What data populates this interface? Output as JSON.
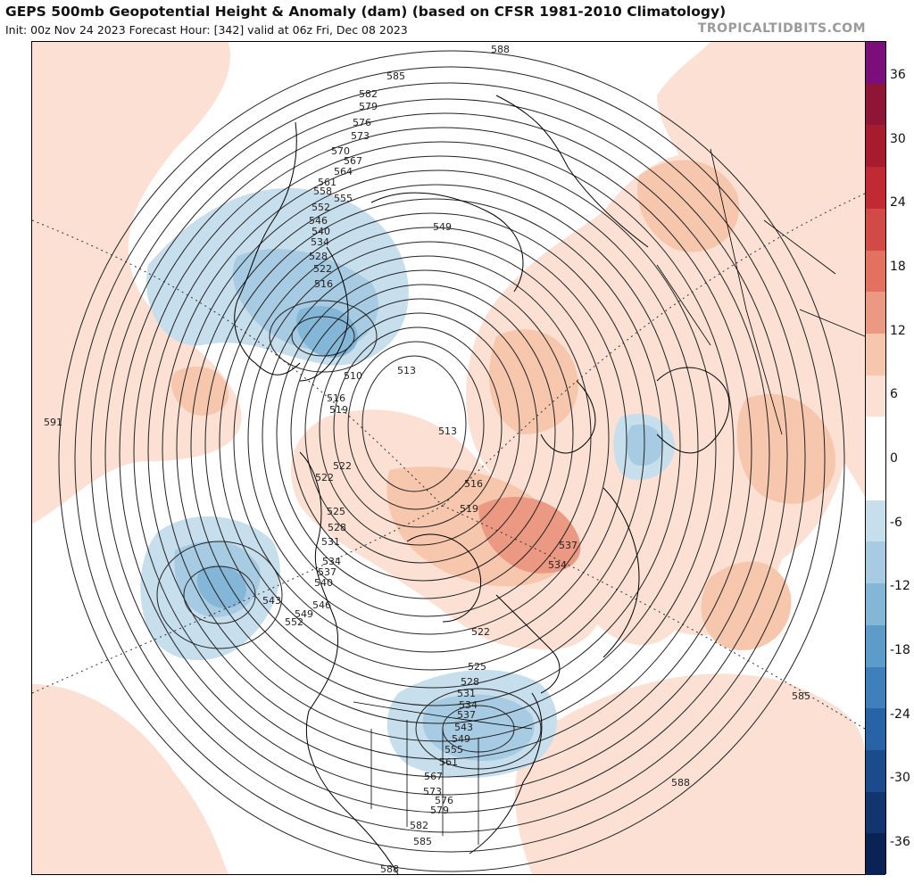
{
  "header": {
    "title": "GEPS 500mb Geopotential Height & Anomaly (dam) (based on CFSR 1981-2010 Climatology)",
    "subtitle": "Init: 00z Nov 24 2023   Forecast Hour: [342]   valid at 06z Fri, Dec 08 2023",
    "brand": "TROPICALTIDBITS.COM"
  },
  "colorbar": {
    "ticks": [
      "36",
      "30",
      "24",
      "18",
      "12",
      "6",
      "0",
      "-6",
      "-12",
      "-18",
      "-24",
      "-30",
      "-36"
    ],
    "colors": [
      "#7b0e7b",
      "#8e1535",
      "#a71b2e",
      "#c12a33",
      "#d24a45",
      "#e2725f",
      "#eb9982",
      "#f6c6ad",
      "#fbe0d3",
      "#ffffff",
      "#ffffff",
      "#c7deec",
      "#a7cbe2",
      "#84b6d8",
      "#5d9bc9",
      "#3e7fbc",
      "#2863a8",
      "#1b4b8c",
      "#123570",
      "#0b2255"
    ]
  },
  "contour_labels": [
    {
      "text": "588"
    },
    {
      "text": "585"
    },
    {
      "text": "582"
    },
    {
      "text": "579"
    },
    {
      "text": "576"
    },
    {
      "text": "573"
    },
    {
      "text": "570"
    },
    {
      "text": "567"
    },
    {
      "text": "564"
    },
    {
      "text": "561"
    },
    {
      "text": "558"
    },
    {
      "text": "555"
    },
    {
      "text": "552"
    },
    {
      "text": "546"
    },
    {
      "text": "540"
    },
    {
      "text": "534"
    },
    {
      "text": "528"
    },
    {
      "text": "522"
    },
    {
      "text": "516"
    },
    {
      "text": "510"
    },
    {
      "text": "513"
    },
    {
      "text": "549"
    },
    {
      "text": "591"
    },
    {
      "text": "516"
    },
    {
      "text": "519"
    },
    {
      "text": "513"
    },
    {
      "text": "522"
    },
    {
      "text": "522"
    },
    {
      "text": "516"
    },
    {
      "text": "519"
    },
    {
      "text": "525"
    },
    {
      "text": "528"
    },
    {
      "text": "531"
    },
    {
      "text": "534"
    },
    {
      "text": "537"
    },
    {
      "text": "540"
    },
    {
      "text": "546"
    },
    {
      "text": "549"
    },
    {
      "text": "552"
    },
    {
      "text": "543"
    },
    {
      "text": "537"
    },
    {
      "text": "534"
    },
    {
      "text": "522"
    },
    {
      "text": "525"
    },
    {
      "text": "528"
    },
    {
      "text": "531"
    },
    {
      "text": "534"
    },
    {
      "text": "537"
    },
    {
      "text": "543"
    },
    {
      "text": "549"
    },
    {
      "text": "555"
    },
    {
      "text": "561"
    },
    {
      "text": "567"
    },
    {
      "text": "573"
    },
    {
      "text": "576"
    },
    {
      "text": "579"
    },
    {
      "text": "582"
    },
    {
      "text": "585"
    },
    {
      "text": "588"
    },
    {
      "text": "588"
    },
    {
      "text": "585"
    }
  ]
}
